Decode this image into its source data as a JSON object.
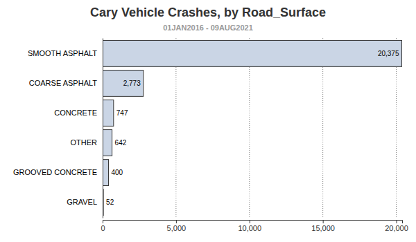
{
  "chart_data": {
    "type": "bar",
    "orientation": "horizontal",
    "title": "Cary Vehicle Crashes, by Road_Surface",
    "subtitle": "01JAN2016 - 09AUG2021",
    "categories": [
      "SMOOTH ASPHALT",
      "COARSE ASPHALT",
      "CONCRETE",
      "OTHER",
      "GROOVED CONCRETE",
      "GRAVEL"
    ],
    "values": [
      20375,
      2773,
      747,
      642,
      400,
      52
    ],
    "value_labels": [
      "20,375",
      "2,773",
      "747",
      "642",
      "400",
      "52"
    ],
    "color": "#cad5e5",
    "xlim": [
      0,
      20400
    ],
    "xticks": [
      0,
      {
        "value": 5000,
        "label": "5,000"
      },
      {
        "value": 10000,
        "label": "10,000"
      },
      {
        "value": 15000,
        "label": "15,000"
      },
      {
        "value": 20000,
        "label": "20,000"
      }
    ],
    "grid": true,
    "data_labels": true
  }
}
